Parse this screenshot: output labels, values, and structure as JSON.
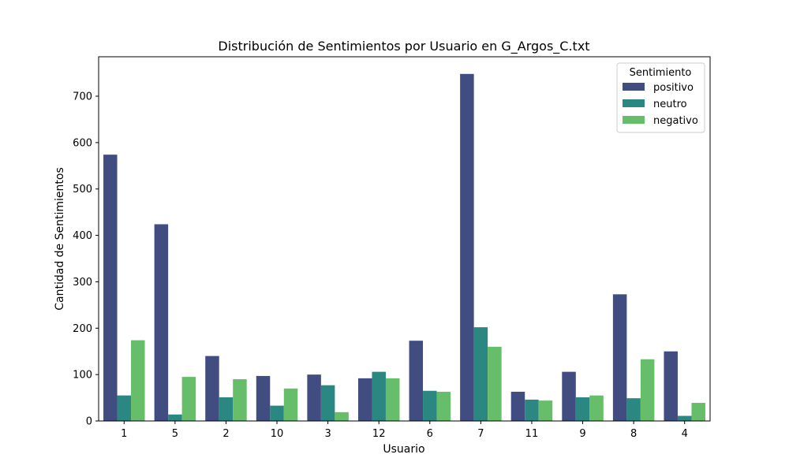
{
  "chart_data": {
    "type": "bar",
    "title": "Distribución de Sentimientos por Usuario en G_Argos_C.txt",
    "xlabel": "Usuario",
    "ylabel": "Cantidad de Sentimientos",
    "categories": [
      "1",
      "5",
      "2",
      "10",
      "3",
      "12",
      "6",
      "7",
      "11",
      "9",
      "8",
      "4"
    ],
    "ylim": [
      0,
      785
    ],
    "yticks": [
      0,
      100,
      200,
      300,
      400,
      500,
      600,
      700
    ],
    "grid": false,
    "legend": {
      "title": "Sentimiento",
      "placement": "top-right"
    },
    "series": [
      {
        "name": "positivo",
        "color": "#414d80",
        "values": [
          574,
          424,
          140,
          97,
          100,
          92,
          173,
          748,
          63,
          106,
          273,
          150
        ]
      },
      {
        "name": "neutro",
        "color": "#2a8781",
        "values": [
          55,
          14,
          51,
          33,
          77,
          106,
          65,
          202,
          46,
          51,
          49,
          11
        ]
      },
      {
        "name": "negativo",
        "color": "#67be6a",
        "values": [
          174,
          95,
          90,
          70,
          19,
          92,
          63,
          160,
          44,
          55,
          133,
          39
        ]
      }
    ]
  }
}
